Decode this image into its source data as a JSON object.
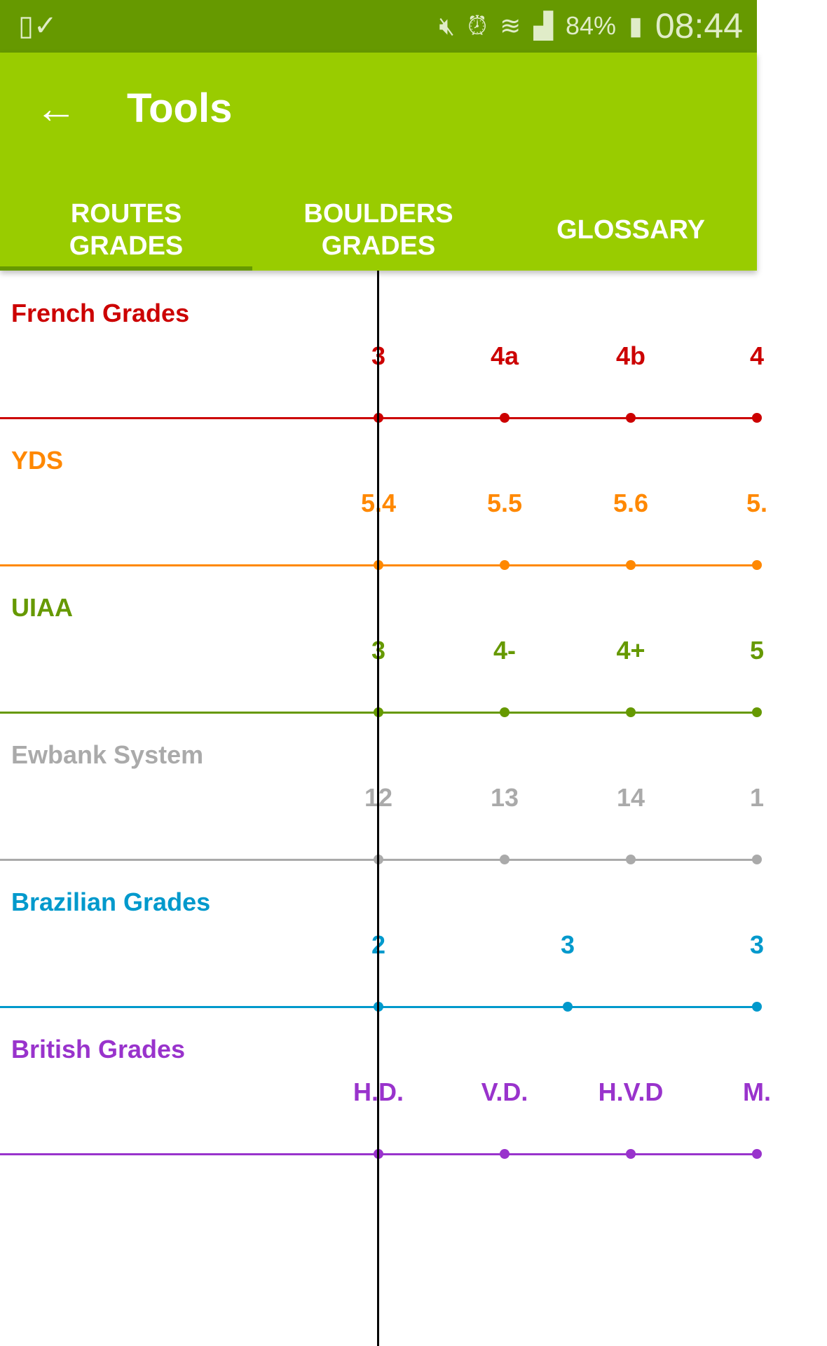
{
  "status_bar": {
    "battery": "84%",
    "time": "08:44",
    "icons": [
      "screenshot-icon",
      "mute-vibrate-icon",
      "alarm-icon",
      "wifi-icon",
      "signal-icon",
      "battery-charging-icon"
    ]
  },
  "toolbar": {
    "title": "Tools",
    "back_icon": "arrow-left-icon"
  },
  "tabs": [
    {
      "label": "ROUTES\nGRADES",
      "active": true
    },
    {
      "label": "BOULDERS\nGRADES",
      "active": false
    },
    {
      "label": "GLOSSARY",
      "active": false
    }
  ],
  "chart_data": {
    "type": "scale-comparison",
    "rows": [
      {
        "title": "French Grades",
        "color": "#cc0000",
        "grades": [
          {
            "label": "3",
            "pos": 0
          },
          {
            "label": "4a",
            "pos": 1
          },
          {
            "label": "4b",
            "pos": 2
          },
          {
            "label": "4",
            "pos": 3
          }
        ]
      },
      {
        "title": "YDS",
        "color": "#ff8800",
        "grades": [
          {
            "label": "5.4",
            "pos": 0
          },
          {
            "label": "5.5",
            "pos": 1
          },
          {
            "label": "5.6",
            "pos": 2
          },
          {
            "label": "5.",
            "pos": 3
          }
        ]
      },
      {
        "title": "UIAA",
        "color": "#669900",
        "grades": [
          {
            "label": "3",
            "pos": 0
          },
          {
            "label": "4-",
            "pos": 1
          },
          {
            "label": "4+",
            "pos": 2
          },
          {
            "label": "5",
            "pos": 3
          }
        ]
      },
      {
        "title": "Ewbank System",
        "color": "#aaaaaa",
        "grades": [
          {
            "label": "12",
            "pos": 0
          },
          {
            "label": "13",
            "pos": 1
          },
          {
            "label": "14",
            "pos": 2
          },
          {
            "label": "1",
            "pos": 3
          }
        ]
      },
      {
        "title": "Brazilian Grades",
        "color": "#0099cc",
        "grades": [
          {
            "label": "2",
            "pos": 0
          },
          {
            "label": "3",
            "pos": 1.5
          },
          {
            "label": "3",
            "pos": 3
          }
        ]
      },
      {
        "title": "British Grades",
        "color": "#9933cc",
        "grades": [
          {
            "label": "H.D.",
            "pos": 0
          },
          {
            "label": "V.D.",
            "pos": 1
          },
          {
            "label": "H.V.D",
            "pos": 2
          },
          {
            "label": "M.",
            "pos": 3
          }
        ]
      }
    ]
  }
}
